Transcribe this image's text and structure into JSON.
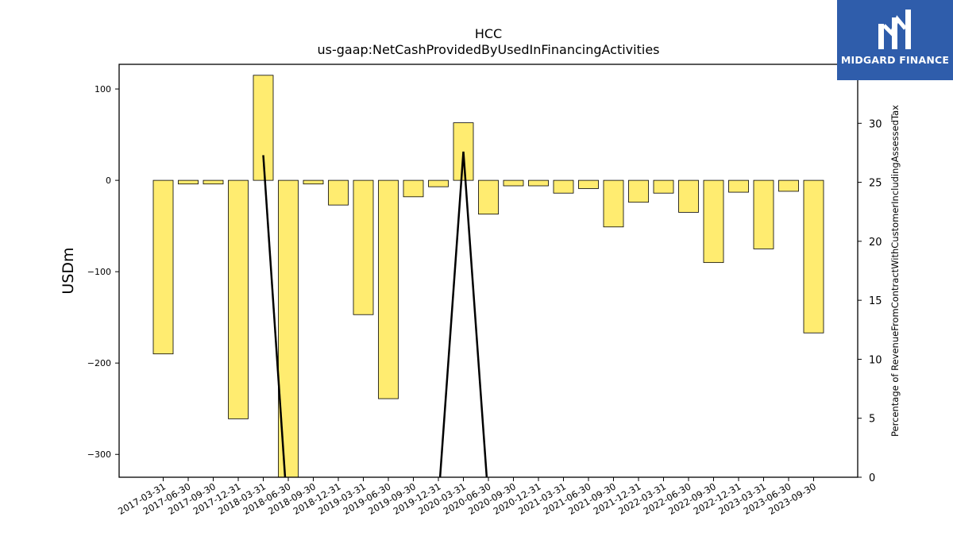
{
  "chart_data": {
    "type": "bar",
    "title": "HCC",
    "subtitle": "us-gaap:NetCashProvidedByUsedInFinancingActivities",
    "ylabel": "USDm",
    "y2label": "Percentage of RevenueFromContractWithCustomerIncludingAssessedTax",
    "ylim": [
      -325,
      127
    ],
    "y2lim": [
      0,
      35
    ],
    "yticks": [
      100,
      0,
      -100,
      -200,
      -300
    ],
    "ytick_labels": [
      "100",
      "0",
      "−100",
      "−200",
      "−300"
    ],
    "y2ticks": [
      0,
      5,
      10,
      15,
      20,
      25,
      30
    ],
    "categories": [
      "2017-03-31",
      "2017-06-30",
      "2017-09-30",
      "2017-12-31",
      "2018-03-31",
      "2018-06-30",
      "2018-09-30",
      "2018-12-31",
      "2019-03-31",
      "2019-06-30",
      "2019-09-30",
      "2019-12-31",
      "2020-03-31",
      "2020-06-30",
      "2020-09-30",
      "2020-12-31",
      "2021-03-31",
      "2021-06-30",
      "2021-09-30",
      "2021-12-31",
      "2022-03-31",
      "2022-06-30",
      "2022-09-30",
      "2022-12-31",
      "2023-03-31",
      "2023-06-30",
      "2023-09-30"
    ],
    "series": [
      {
        "type": "bar",
        "values": [
          -190,
          -4,
          -4,
          -261,
          115,
          -330,
          -4,
          -27,
          -147,
          -239,
          -18,
          -7,
          63,
          -37,
          -6,
          -6,
          -14,
          -9,
          -51,
          -24,
          -14,
          -35,
          -90,
          -13,
          -75,
          -12,
          -167
        ],
        "color": "#ffec70",
        "edge_color": "#000000"
      },
      {
        "type": "line",
        "axis": "right",
        "values": [
          null,
          null,
          null,
          null,
          27.3,
          -4,
          null,
          null,
          null,
          null,
          null,
          -2,
          27.6,
          -2,
          null,
          null,
          null,
          null,
          null,
          null,
          null,
          null,
          null,
          null,
          null,
          null,
          null
        ],
        "color": "#000000"
      }
    ],
    "grid": false
  },
  "logo": {
    "text": "MIDGARD FINANCE",
    "bg_color": "#2f5dab"
  }
}
